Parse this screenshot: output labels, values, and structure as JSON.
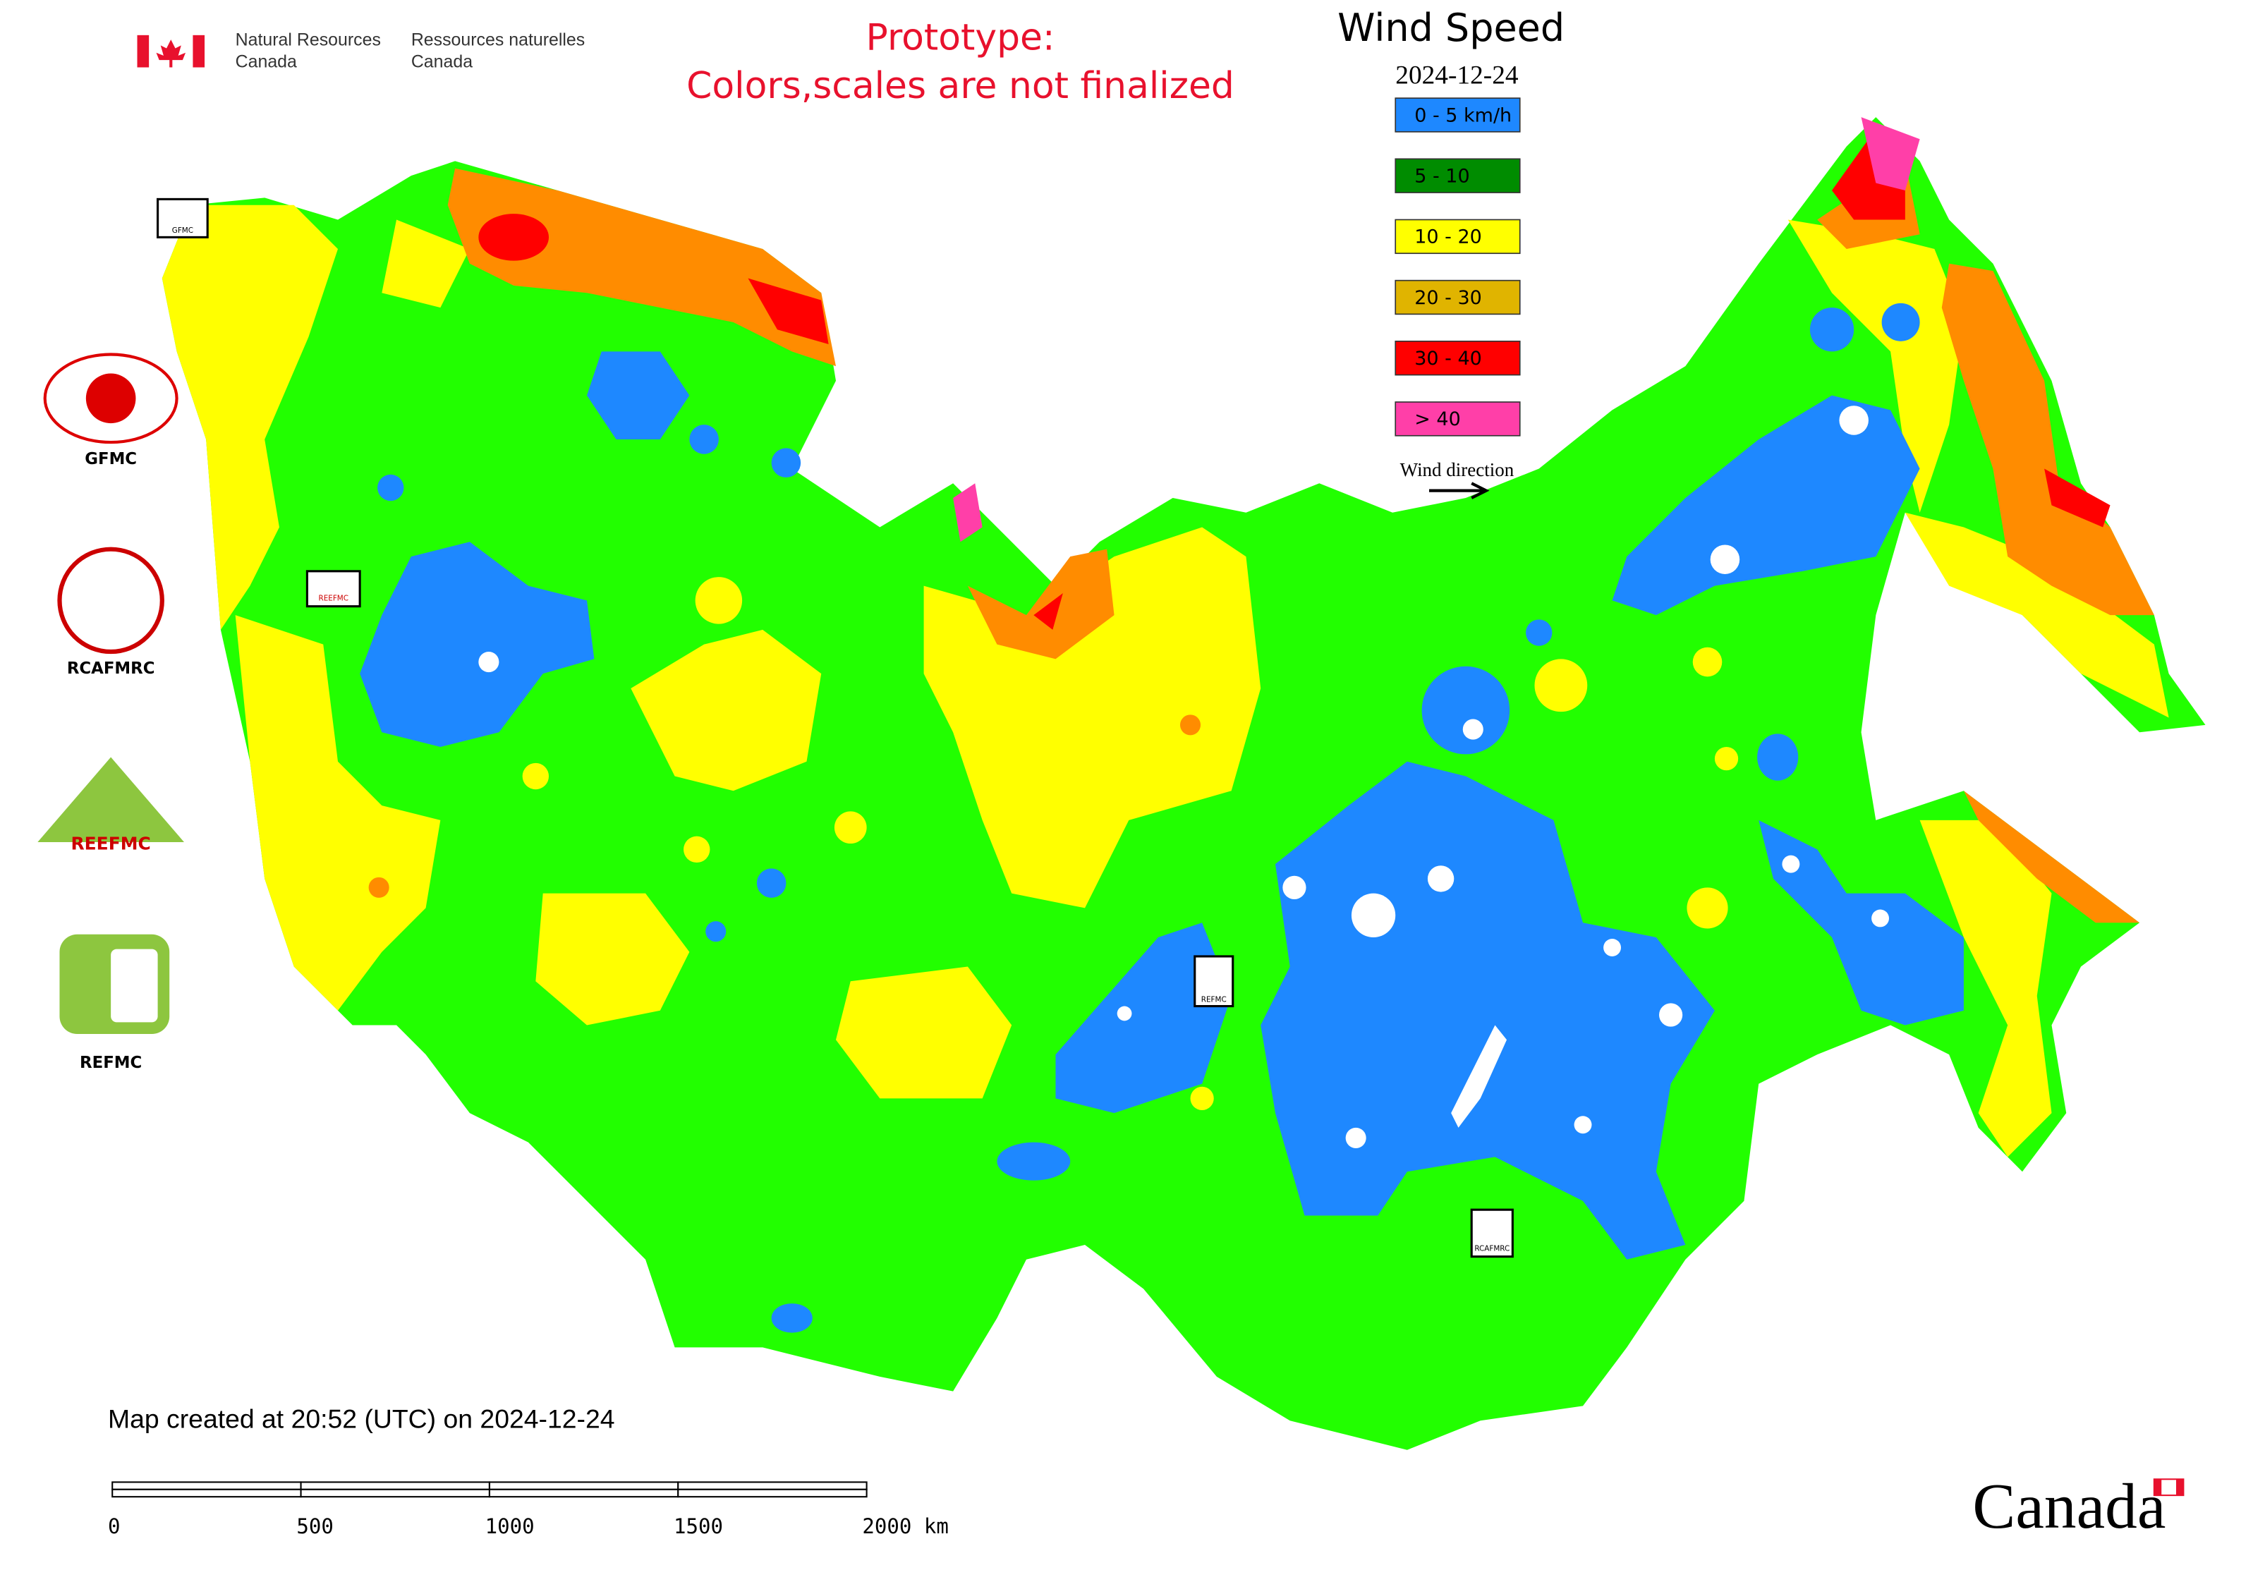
{
  "header": {
    "agency_en_1": "Natural Resources",
    "agency_en_2": "Canada",
    "agency_fr_1": "Ressources naturelles",
    "agency_fr_2": "Canada"
  },
  "notice": [
    "Prototype:",
    "Colors,scales are not finalized"
  ],
  "title": "Wind Speed",
  "date": "2024-12-24",
  "legend": {
    "items": [
      {
        "label": "0 - 5 km/h",
        "color": "#1e88ff"
      },
      {
        "label": "5 - 10",
        "color": "#008c00"
      },
      {
        "label": "10 - 20",
        "color": "#ffff00"
      },
      {
        "label": "20 - 30",
        "color": "#e0b400"
      },
      {
        "label": "30 - 40",
        "color": "#ff0000"
      },
      {
        "label": "> 40",
        "color": "#ff3fa8"
      }
    ],
    "wind_direction": "Wind direction"
  },
  "logos": [
    "GFMC",
    "RCAFMRC",
    "REEFMC",
    "REFMC"
  ],
  "footer": "Map created at 20:52 (UTC) on 2024-12-24",
  "scale_bar": [
    "0",
    "500",
    "1000",
    "1500",
    "2000 km"
  ],
  "wordmark": "Canada"
}
